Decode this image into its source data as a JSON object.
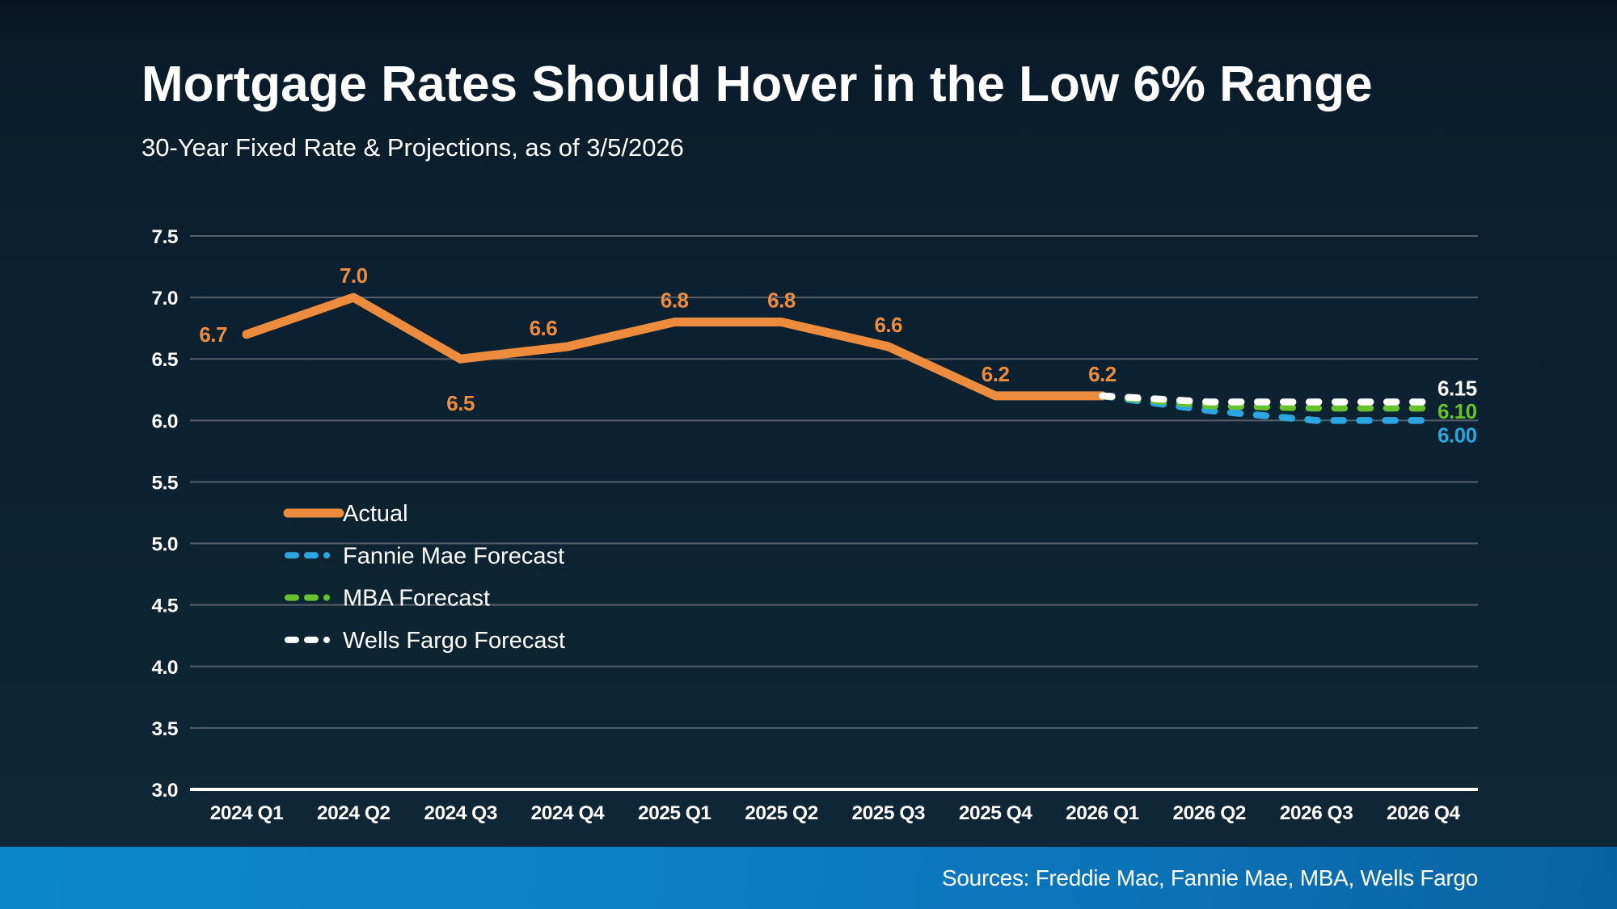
{
  "page": {
    "title": "Mortgage Rates Should Hover in the Low 6% Range",
    "subtitle": "30-Year Fixed Rate & Projections, as of 3/5/2026",
    "source_note": "Sources: Freddie Mac, Fannie Mae, MBA, Wells Fargo"
  },
  "colors": {
    "background": "#0c2232",
    "text": "#ffffff",
    "gridline": "#555f69",
    "axis_baseline": "#ffffff",
    "footer_bar_left": "#0e86cc",
    "footer_bar_right": "#09629f"
  },
  "chart_data": {
    "type": "line",
    "title": "30-Year Fixed Rate & Projections, as of 3/5/2026",
    "xlabel": "",
    "ylabel": "",
    "categories": [
      "2024 Q1",
      "2024 Q2",
      "2024 Q3",
      "2024 Q4",
      "2025 Q1",
      "2025 Q2",
      "2025 Q3",
      "2025 Q4",
      "2026 Q1",
      "2026 Q2",
      "2026 Q3",
      "2026 Q4"
    ],
    "ylim": [
      3.0,
      7.5
    ],
    "ytick_step": 0.5,
    "grid": true,
    "legend_position": "inside-left-middle",
    "series": [
      {
        "id": "actual",
        "name": "Actual",
        "color": "#ED8C3D",
        "style": "solid",
        "x_start_index": 0,
        "values": [
          6.7,
          7.0,
          6.5,
          6.6,
          6.8,
          6.8,
          6.6,
          6.2,
          6.2
        ],
        "point_labels": [
          "6.7",
          "7.0",
          "6.5",
          "6.6",
          "6.8",
          "6.8",
          "6.6",
          "6.2",
          "6.2"
        ]
      },
      {
        "id": "fannie",
        "name": "Fannie Mae Forecast",
        "color": "#2AA7E1",
        "style": "dashed",
        "x_start_index": 8,
        "values": [
          6.2,
          6.08,
          6.0,
          6.0
        ],
        "end_label": "6.00"
      },
      {
        "id": "mba",
        "name": "MBA Forecast",
        "color": "#66C22D",
        "style": "dashed",
        "x_start_index": 8,
        "values": [
          6.2,
          6.12,
          6.1,
          6.1
        ],
        "end_label": "6.10"
      },
      {
        "id": "wells",
        "name": "Wells Fargo Forecast",
        "color": "#FFFFFF",
        "style": "dashed",
        "x_start_index": 8,
        "values": [
          6.2,
          6.15,
          6.15,
          6.15
        ],
        "end_label": "6.15"
      }
    ]
  }
}
